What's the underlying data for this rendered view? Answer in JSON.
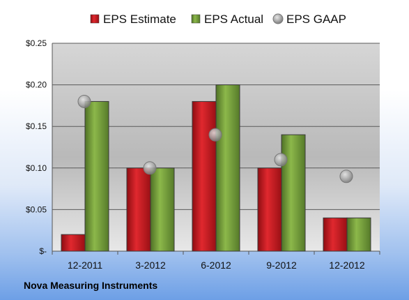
{
  "chart_data": {
    "type": "bar",
    "categories": [
      "12-2011",
      "3-2012",
      "6-2012",
      "9-2012",
      "12-2012"
    ],
    "series": [
      {
        "name": "EPS Estimate",
        "kind": "bar",
        "color": "#c8161d",
        "values": [
          0.02,
          0.1,
          0.18,
          0.1,
          0.04
        ]
      },
      {
        "name": "EPS Actual",
        "kind": "bar",
        "color": "#77a03a",
        "values": [
          0.18,
          0.1,
          0.2,
          0.14,
          0.04
        ]
      },
      {
        "name": "EPS GAAP",
        "kind": "scatter",
        "color": "#a6a6a6",
        "values": [
          0.18,
          0.1,
          0.14,
          0.11,
          0.09
        ]
      }
    ],
    "yticks": [
      "$-",
      "$0.05",
      "$0.10",
      "$0.15",
      "$0.20",
      "$0.25"
    ],
    "ylim": [
      0,
      0.25
    ],
    "grid": true,
    "legend_position": "top"
  },
  "footer": {
    "company": "Nova Measuring Instruments"
  }
}
